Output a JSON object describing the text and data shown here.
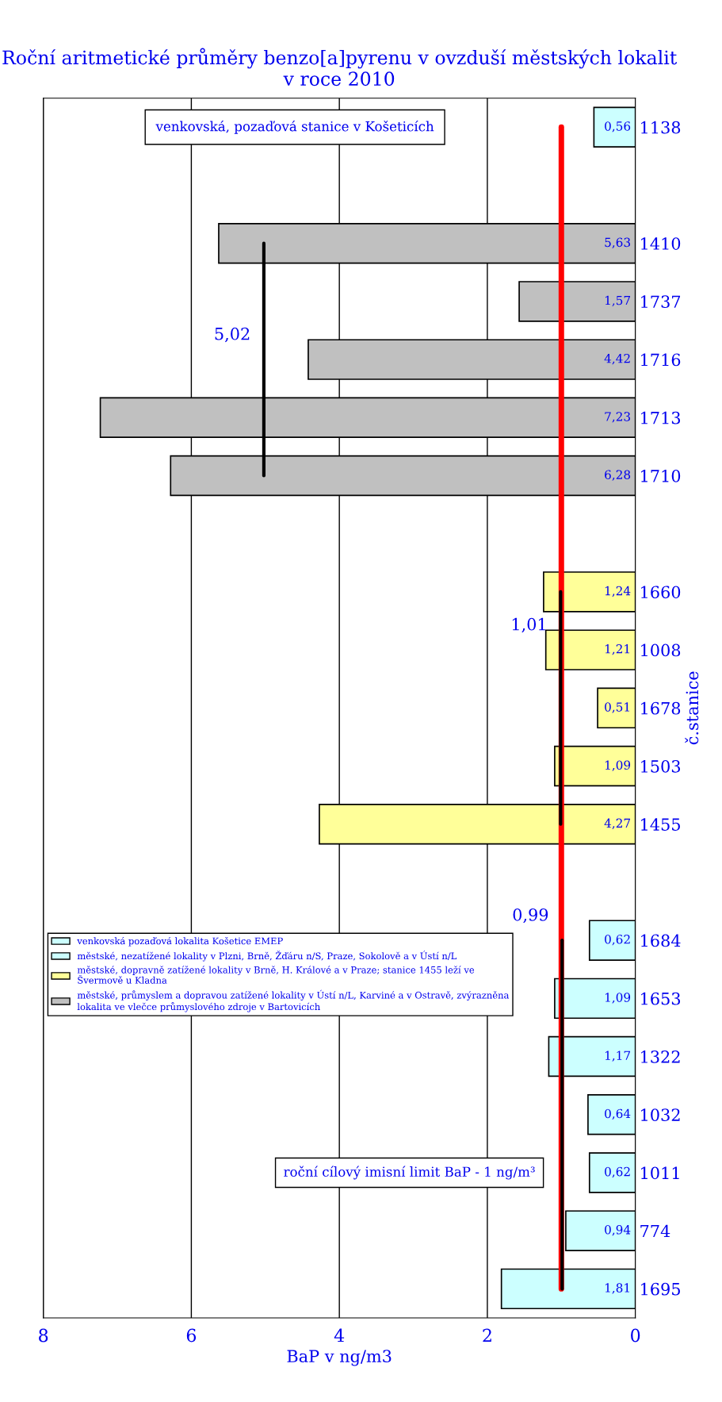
{
  "chart_data": {
    "type": "bar",
    "orientation": "horizontal",
    "title": "Roční aritmetické průměry benzo[a]pyrenu v ovzduší městských lokalit v roce 2010",
    "xlabel": "BaP v ng/m3",
    "ylabel": "č.stanice",
    "categories": [
      "1138",
      null,
      "1410",
      "1737",
      "1716",
      "1713",
      "1710",
      null,
      "1660",
      "1008",
      "1678",
      "1503",
      "1455",
      null,
      "1684",
      "1653",
      "1322",
      "1032",
      "1011",
      "774",
      "1695"
    ],
    "series": [
      {
        "name": "venkovská pozaďová lokalita Košetice EMEP",
        "color": "#ccffff",
        "values": [
          0.56,
          null,
          null,
          null,
          null,
          null,
          null,
          null,
          null,
          null,
          null,
          null,
          null,
          null,
          null,
          null,
          null,
          null,
          null,
          null,
          null
        ],
        "value_labels": [
          "0,56",
          null,
          null,
          null,
          null,
          null,
          null,
          null,
          null,
          null,
          null,
          null,
          null,
          null,
          null,
          null,
          null,
          null,
          null,
          null,
          null
        ]
      },
      {
        "name": "městské, nezatížené lokality v Plzni, Brně, Žďáru n/S, Praze, Sokolově a v Ústí n/L",
        "color": "#ccffff",
        "values": [
          null,
          null,
          null,
          null,
          null,
          null,
          null,
          null,
          null,
          null,
          null,
          null,
          null,
          null,
          0.62,
          1.09,
          1.17,
          0.64,
          0.62,
          0.94,
          1.81
        ],
        "value_labels": [
          null,
          null,
          null,
          null,
          null,
          null,
          null,
          null,
          null,
          null,
          null,
          null,
          null,
          null,
          "0,62",
          "1,09",
          "1,17",
          "0,64",
          "0,62",
          "0,94",
          "1,81"
        ]
      },
      {
        "name": "městské, dopravně zatížené lokality v Brně, H. Králové a v Praze; stanice 1455 leží ve\nŠvermově u Kladna",
        "color": "#ffff99",
        "values": [
          null,
          null,
          null,
          null,
          null,
          null,
          null,
          null,
          1.24,
          1.21,
          0.51,
          1.09,
          4.27,
          null,
          null,
          null,
          null,
          null,
          null,
          null,
          null
        ],
        "value_labels": [
          null,
          null,
          null,
          null,
          null,
          null,
          null,
          null,
          "1,24",
          "1,21",
          "0,51",
          "1,09",
          "4,27",
          null,
          null,
          null,
          null,
          null,
          null,
          null,
          null
        ]
      },
      {
        "name": "městské, průmyslem a dopravou zatížené lokality v Ústí n/L, Karviné a v Ostravě, zvýrazněna\nlokalita ve vlečce průmyslového zdroje v Bartovicích",
        "color": "#c0c0c0",
        "values": [
          null,
          null,
          5.63,
          1.57,
          4.42,
          7.23,
          6.28,
          null,
          null,
          null,
          null,
          null,
          null,
          null,
          null,
          null,
          null,
          null,
          null,
          null,
          null
        ],
        "value_labels": [
          null,
          null,
          "5,63",
          "1,57",
          "4,42",
          "7,23",
          "6,28",
          null,
          null,
          null,
          null,
          null,
          null,
          null,
          null,
          null,
          null,
          null,
          null,
          null,
          null
        ]
      },
      {
        "type": "line",
        "color": "#000000",
        "values": [
          null,
          null,
          5.02,
          5.02,
          5.02,
          5.02,
          5.02,
          null,
          null,
          null,
          null,
          null,
          null,
          null,
          null,
          null,
          null,
          null,
          null,
          null,
          null
        ]
      },
      {
        "type": "line",
        "color": "#000000",
        "values": [
          null,
          null,
          null,
          null,
          null,
          null,
          null,
          null,
          1.01,
          1.01,
          1.01,
          1.01,
          1.01,
          null,
          null,
          null,
          null,
          null,
          null,
          null,
          null
        ]
      },
      {
        "type": "line",
        "color": "#000000",
        "values": [
          null,
          null,
          null,
          null,
          null,
          null,
          null,
          null,
          null,
          null,
          null,
          null,
          null,
          null,
          0.99,
          0.99,
          0.99,
          0.99,
          0.99,
          0.99,
          0.99
        ]
      }
    ],
    "xlim": [
      8,
      0
    ],
    "xticks": [
      8,
      6,
      4,
      2,
      0
    ],
    "grid": "x",
    "legend": "bottom left",
    "ref_lines": [
      {
        "axis": "x",
        "value": 1,
        "label": "roční cílový imisní limit BaP - 1 ng/m³",
        "color": "#ff0000"
      }
    ],
    "annotations": [
      {
        "text": "5,02",
        "x": 5.02,
        "y": "1716"
      },
      {
        "text": "1,01",
        "x": 1.01,
        "y": "1008"
      },
      {
        "text": "0,99",
        "x": 0.99,
        "y": "1684"
      },
      "venkovská, pozaďová stanice v Košeticích"
    ]
  }
}
